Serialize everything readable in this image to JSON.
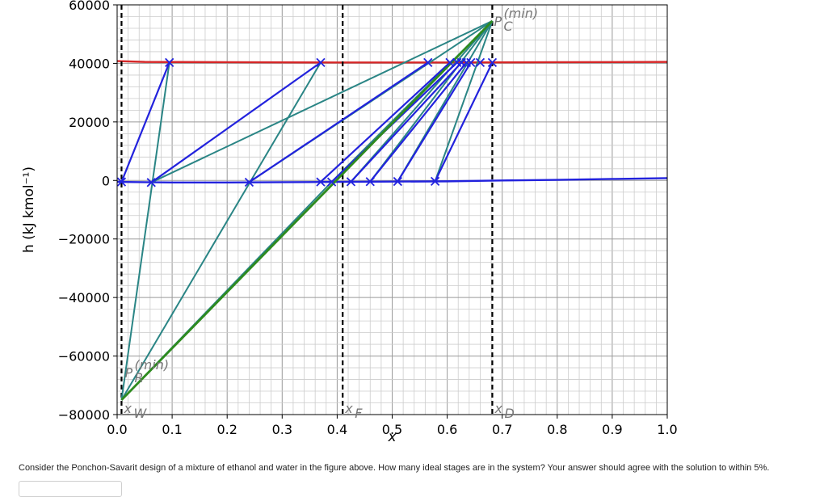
{
  "chart_data": {
    "type": "line",
    "title": "",
    "xlabel": "x",
    "ylabel": "h (kJ kmol⁻¹)",
    "xlim": [
      0.0,
      1.0
    ],
    "ylim": [
      -80000,
      60000
    ],
    "x_ticks": [
      "0.0",
      "0.1",
      "0.2",
      "0.3",
      "0.4",
      "0.5",
      "0.6",
      "0.7",
      "0.8",
      "0.9",
      "1.0"
    ],
    "y_ticks": [
      "−80000",
      "−60000",
      "−40000",
      "−20000",
      "0",
      "20000",
      "40000",
      "60000"
    ],
    "grid": true,
    "colors": {
      "vapor": "#d62728",
      "liquid": "#2222dd",
      "tieline": "#2222dd",
      "operating": "#2a8585",
      "pinch": "#2e8b1e",
      "marker": "#2222dd",
      "dashed": "#000000"
    },
    "vapor_curve": {
      "x": [
        0.0,
        0.05,
        0.2,
        0.4,
        0.6,
        0.8,
        1.0
      ],
      "y": [
        40800,
        40500,
        40400,
        40300,
        40300,
        40400,
        40500
      ]
    },
    "liquid_curve": {
      "x": [
        0.0,
        0.1,
        0.2,
        0.3,
        0.4,
        0.5,
        0.6,
        0.7,
        0.8,
        0.9,
        1.0
      ],
      "y": [
        -500,
        -700,
        -700,
        -600,
        -500,
        -400,
        -300,
        0,
        200,
        500,
        800
      ]
    },
    "feed_xF": 0.41,
    "distillate_xD": 0.682,
    "bottoms_xW": 0.008,
    "pole_D": {
      "x": 0.682,
      "y": 54500
    },
    "pole_W": {
      "x": 0.008,
      "y": -75000
    },
    "vapor_points": {
      "x": [
        0.095,
        0.37,
        0.565,
        0.605,
        0.618,
        0.626,
        0.635,
        0.643,
        0.66,
        0.682
      ],
      "y": [
        40300,
        40300,
        40300,
        40300,
        40300,
        40300,
        40300,
        40300,
        40300,
        40300
      ]
    },
    "liquid_points": {
      "x": [
        0.008,
        0.062,
        0.24,
        0.37,
        0.39,
        0.425,
        0.46,
        0.51,
        0.578
      ],
      "y": [
        -500,
        -700,
        -600,
        -500,
        -500,
        -450,
        -400,
        -350,
        -300
      ]
    },
    "tie_lines": [
      {
        "x": [
          0.008,
          0.095
        ],
        "y": [
          -500,
          40300
        ]
      },
      {
        "x": [
          0.062,
          0.37
        ],
        "y": [
          -700,
          40300
        ]
      },
      {
        "x": [
          0.24,
          0.565
        ],
        "y": [
          -600,
          40300
        ]
      },
      {
        "x": [
          0.37,
          0.605
        ],
        "y": [
          -500,
          40300
        ]
      },
      {
        "x": [
          0.39,
          0.618
        ],
        "y": [
          -500,
          40300
        ]
      },
      {
        "x": [
          0.425,
          0.626
        ],
        "y": [
          -450,
          40300
        ]
      },
      {
        "x": [
          0.46,
          0.635
        ],
        "y": [
          -400,
          40300
        ]
      },
      {
        "x": [
          0.51,
          0.643
        ],
        "y": [
          -350,
          40300
        ]
      },
      {
        "x": [
          0.578,
          0.682
        ],
        "y": [
          -300,
          40300
        ]
      }
    ],
    "operating_lines": [
      {
        "x": [
          0.008,
          0.095
        ],
        "y": [
          -75000,
          40300
        ]
      },
      {
        "x": [
          0.008,
          0.37
        ],
        "y": [
          -75000,
          40300
        ]
      },
      {
        "x": [
          0.008,
          0.39
        ],
        "y": [
          -75000,
          -500
        ]
      },
      {
        "x": [
          0.39,
          0.682
        ],
        "y": [
          -500,
          54500
        ]
      },
      {
        "x": [
          0.425,
          0.682
        ],
        "y": [
          -450,
          54500
        ]
      },
      {
        "x": [
          0.46,
          0.682
        ],
        "y": [
          -400,
          54500
        ]
      },
      {
        "x": [
          0.51,
          0.682
        ],
        "y": [
          -350,
          54500
        ]
      },
      {
        "x": [
          0.578,
          0.682
        ],
        "y": [
          -300,
          54500
        ]
      },
      {
        "x": [
          0.062,
          0.682
        ],
        "y": [
          -700,
          54500
        ]
      },
      {
        "x": [
          0.24,
          0.682
        ],
        "y": [
          -600,
          54500
        ]
      }
    ],
    "min_reflux_line": {
      "x": [
        0.008,
        0.682
      ],
      "y": [
        -75000,
        54500
      ]
    },
    "annotations": {
      "pole_top_sup": "(min)",
      "pole_top_label": "P",
      "pole_top_sub": "C",
      "pole_bottom_sup": "(min)",
      "pole_bottom_label": "P",
      "pole_bottom_sub": "R",
      "xw_label": "x",
      "xw_sub": "W",
      "xf_label": "x",
      "xf_sub": "F",
      "xd_label": "x",
      "xd_sub": "D"
    }
  },
  "question": "Consider the Ponchon-Savarit design of a mixture of ethanol and water in the figure above. How many ideal stages are in the system? Your answer should agree with the solution to within 5%.",
  "answer_input": {
    "value": "",
    "placeholder": ""
  }
}
